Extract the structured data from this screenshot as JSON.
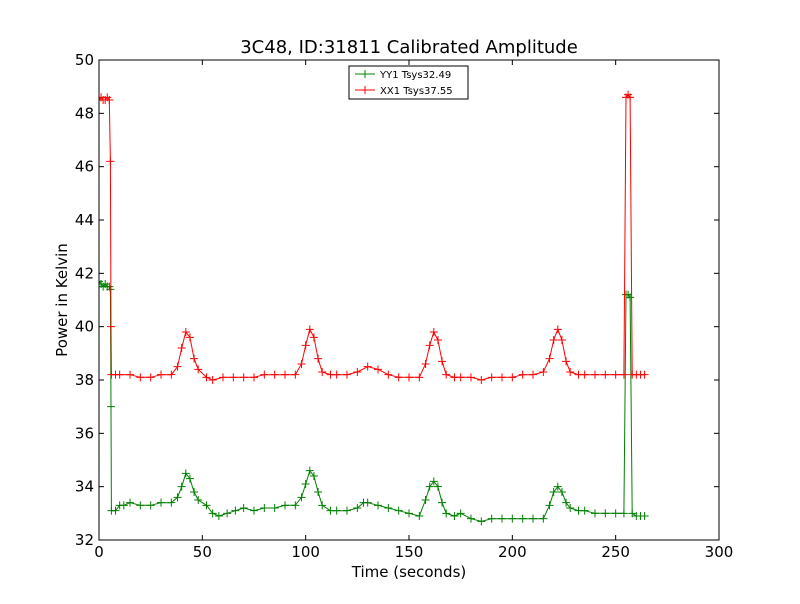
{
  "chart_data": {
    "type": "line",
    "title": "3C48, ID:31811 Calibrated Amplitude",
    "xlabel": "Time (seconds)",
    "ylabel": "Power in Kelvin",
    "xlim": [
      0,
      300
    ],
    "ylim": [
      32,
      50
    ],
    "xticks": [
      0,
      50,
      100,
      150,
      200,
      250,
      300
    ],
    "yticks": [
      32,
      34,
      36,
      38,
      40,
      42,
      44,
      46,
      48,
      50
    ],
    "grid": false,
    "legend_placement": "top-center",
    "marker": "plus",
    "series": [
      {
        "name": "YY1 Tsys32.49",
        "color": "#008000",
        "points": [
          [
            0,
            41.7
          ],
          [
            1,
            41.6
          ],
          [
            2,
            41.5
          ],
          [
            3,
            41.6
          ],
          [
            4,
            41.5
          ],
          [
            5,
            41.5
          ],
          [
            5.5,
            41.4
          ],
          [
            5.8,
            37.0
          ],
          [
            6,
            33.1
          ],
          [
            8,
            33.1
          ],
          [
            10,
            33.3
          ],
          [
            12,
            33.3
          ],
          [
            15,
            33.4
          ],
          [
            20,
            33.3
          ],
          [
            25,
            33.3
          ],
          [
            30,
            33.4
          ],
          [
            35,
            33.4
          ],
          [
            38,
            33.6
          ],
          [
            40,
            34.0
          ],
          [
            42,
            34.5
          ],
          [
            44,
            34.3
          ],
          [
            46,
            33.8
          ],
          [
            48,
            33.5
          ],
          [
            52,
            33.3
          ],
          [
            55,
            33.0
          ],
          [
            58,
            32.9
          ],
          [
            62,
            33.0
          ],
          [
            66,
            33.1
          ],
          [
            70,
            33.2
          ],
          [
            75,
            33.1
          ],
          [
            80,
            33.2
          ],
          [
            85,
            33.2
          ],
          [
            90,
            33.3
          ],
          [
            95,
            33.3
          ],
          [
            98,
            33.6
          ],
          [
            100,
            34.1
          ],
          [
            102,
            34.6
          ],
          [
            104,
            34.4
          ],
          [
            106,
            33.8
          ],
          [
            108,
            33.3
          ],
          [
            112,
            33.1
          ],
          [
            115,
            33.1
          ],
          [
            120,
            33.1
          ],
          [
            125,
            33.2
          ],
          [
            128,
            33.4
          ],
          [
            130,
            33.4
          ],
          [
            135,
            33.3
          ],
          [
            140,
            33.2
          ],
          [
            145,
            33.1
          ],
          [
            150,
            33.0
          ],
          [
            155,
            32.9
          ],
          [
            158,
            33.5
          ],
          [
            160,
            34.0
          ],
          [
            162,
            34.2
          ],
          [
            164,
            34.0
          ],
          [
            166,
            33.4
          ],
          [
            168,
            33.0
          ],
          [
            172,
            32.9
          ],
          [
            175,
            33.0
          ],
          [
            180,
            32.8
          ],
          [
            185,
            32.7
          ],
          [
            190,
            32.8
          ],
          [
            195,
            32.8
          ],
          [
            200,
            32.8
          ],
          [
            205,
            32.8
          ],
          [
            210,
            32.8
          ],
          [
            215,
            32.8
          ],
          [
            218,
            33.3
          ],
          [
            220,
            33.8
          ],
          [
            222,
            34.0
          ],
          [
            224,
            33.8
          ],
          [
            226,
            33.4
          ],
          [
            228,
            33.2
          ],
          [
            232,
            33.1
          ],
          [
            235,
            33.1
          ],
          [
            240,
            33.0
          ],
          [
            245,
            33.0
          ],
          [
            250,
            33.0
          ],
          [
            254,
            33.0
          ],
          [
            255,
            41.2
          ],
          [
            256,
            41.2
          ],
          [
            257,
            41.1
          ],
          [
            258,
            33.0
          ],
          [
            260,
            32.9
          ],
          [
            262,
            32.9
          ],
          [
            264,
            32.9
          ]
        ]
      },
      {
        "name": "XX1 Tsys37.55",
        "color": "#ff0000",
        "points": [
          [
            0,
            48.5
          ],
          [
            1,
            48.6
          ],
          [
            2,
            48.5
          ],
          [
            3,
            48.5
          ],
          [
            4,
            48.6
          ],
          [
            5,
            48.5
          ],
          [
            5.5,
            46.2
          ],
          [
            5.8,
            40.0
          ],
          [
            6,
            38.2
          ],
          [
            8,
            38.2
          ],
          [
            10,
            38.2
          ],
          [
            15,
            38.2
          ],
          [
            20,
            38.1
          ],
          [
            25,
            38.1
          ],
          [
            30,
            38.2
          ],
          [
            35,
            38.2
          ],
          [
            38,
            38.5
          ],
          [
            40,
            39.2
          ],
          [
            42,
            39.8
          ],
          [
            44,
            39.6
          ],
          [
            46,
            38.8
          ],
          [
            48,
            38.4
          ],
          [
            52,
            38.1
          ],
          [
            55,
            38.0
          ],
          [
            60,
            38.1
          ],
          [
            65,
            38.1
          ],
          [
            70,
            38.1
          ],
          [
            75,
            38.1
          ],
          [
            80,
            38.2
          ],
          [
            85,
            38.2
          ],
          [
            90,
            38.2
          ],
          [
            95,
            38.2
          ],
          [
            98,
            38.6
          ],
          [
            100,
            39.3
          ],
          [
            102,
            39.9
          ],
          [
            104,
            39.6
          ],
          [
            106,
            38.8
          ],
          [
            108,
            38.3
          ],
          [
            112,
            38.2
          ],
          [
            115,
            38.2
          ],
          [
            120,
            38.2
          ],
          [
            125,
            38.3
          ],
          [
            130,
            38.5
          ],
          [
            135,
            38.4
          ],
          [
            140,
            38.2
          ],
          [
            145,
            38.1
          ],
          [
            150,
            38.1
          ],
          [
            155,
            38.1
          ],
          [
            158,
            38.6
          ],
          [
            160,
            39.3
          ],
          [
            162,
            39.8
          ],
          [
            164,
            39.5
          ],
          [
            166,
            38.7
          ],
          [
            168,
            38.2
          ],
          [
            172,
            38.1
          ],
          [
            175,
            38.1
          ],
          [
            180,
            38.1
          ],
          [
            185,
            38.0
          ],
          [
            190,
            38.1
          ],
          [
            195,
            38.1
          ],
          [
            200,
            38.1
          ],
          [
            205,
            38.2
          ],
          [
            210,
            38.2
          ],
          [
            215,
            38.3
          ],
          [
            218,
            38.8
          ],
          [
            220,
            39.5
          ],
          [
            222,
            39.9
          ],
          [
            224,
            39.5
          ],
          [
            226,
            38.7
          ],
          [
            228,
            38.3
          ],
          [
            232,
            38.2
          ],
          [
            235,
            38.2
          ],
          [
            240,
            38.2
          ],
          [
            245,
            38.2
          ],
          [
            250,
            38.2
          ],
          [
            254,
            38.2
          ],
          [
            255,
            48.6
          ],
          [
            256,
            48.7
          ],
          [
            257,
            48.6
          ],
          [
            258,
            38.2
          ],
          [
            260,
            38.2
          ],
          [
            262,
            38.2
          ],
          [
            264,
            38.2
          ]
        ]
      }
    ]
  }
}
